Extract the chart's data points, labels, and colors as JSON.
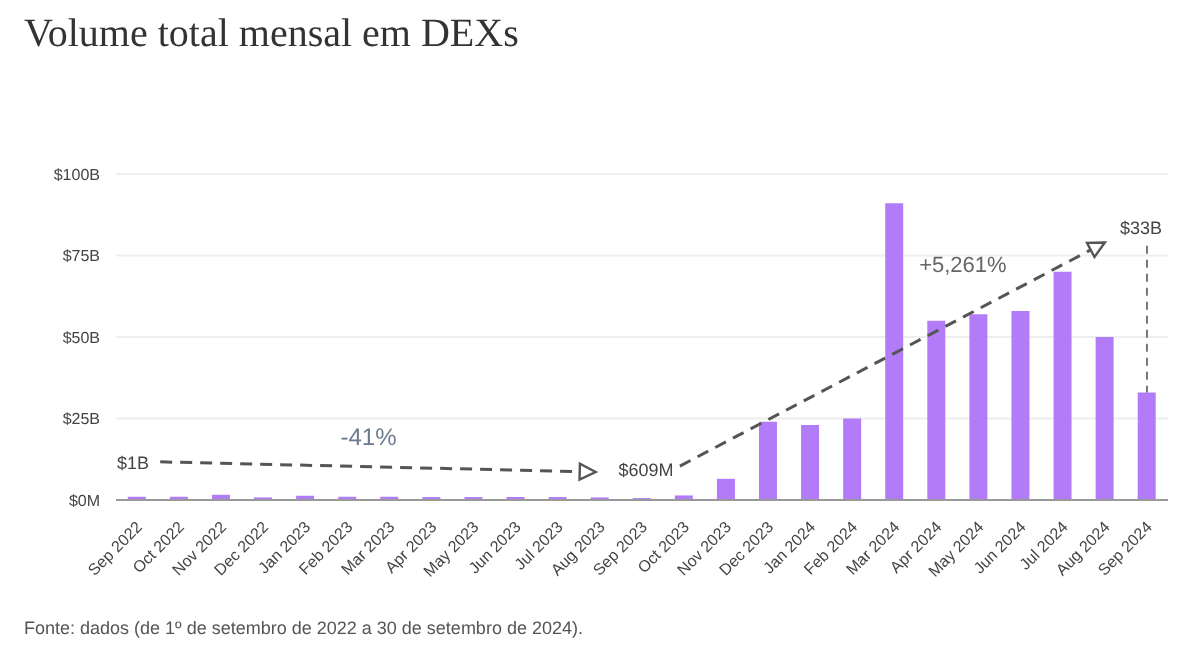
{
  "chart_data": {
    "type": "bar",
    "title": "Volume total mensal em DEXs",
    "categories": [
      "Sep 2022",
      "Oct 2022",
      "Nov 2022",
      "Dec 2022",
      "Jan 2023",
      "Feb 2023",
      "Mar 2023",
      "Apr 2023",
      "May 2023",
      "Jun 2023",
      "Jul 2023",
      "Aug 2023",
      "Sep 2023",
      "Oct 2023",
      "Nov 2023",
      "Dec 2023",
      "Jan 2024",
      "Feb 2024",
      "Mar 2024",
      "Apr 2024",
      "May 2024",
      "Jun 2024",
      "Jul 2024",
      "Aug 2024",
      "Sep 2024"
    ],
    "values": [
      1,
      1,
      1.6,
      0.8,
      1.3,
      1,
      1,
      0.9,
      0.9,
      0.9,
      0.9,
      0.8,
      0.6,
      1.4,
      6.5,
      24,
      23,
      25,
      91,
      55,
      57,
      58,
      70,
      50,
      33
    ],
    "color": "#b27cf8",
    "ylim": [
      0,
      100
    ],
    "yticks": [
      {
        "value": 0,
        "label": "$0M"
      },
      {
        "value": 25,
        "label": "$25B"
      },
      {
        "value": 50,
        "label": "$50B"
      },
      {
        "value": 75,
        "label": "$75B"
      },
      {
        "value": 100,
        "label": "$100B"
      }
    ],
    "grid": "y",
    "annotations": [
      "-41%",
      "+5,261%",
      {
        "text": "$1B",
        "x": "Sep 2022",
        "y": 1
      },
      {
        "text": "$609M",
        "x": "Sep 2023",
        "y": 0.609
      },
      {
        "text": "$33B",
        "x": "Sep 2024",
        "y": 33
      },
      "Fonte: dados (de 1º de setembro de 2022 a 30 de setembro de 2024)."
    ]
  }
}
